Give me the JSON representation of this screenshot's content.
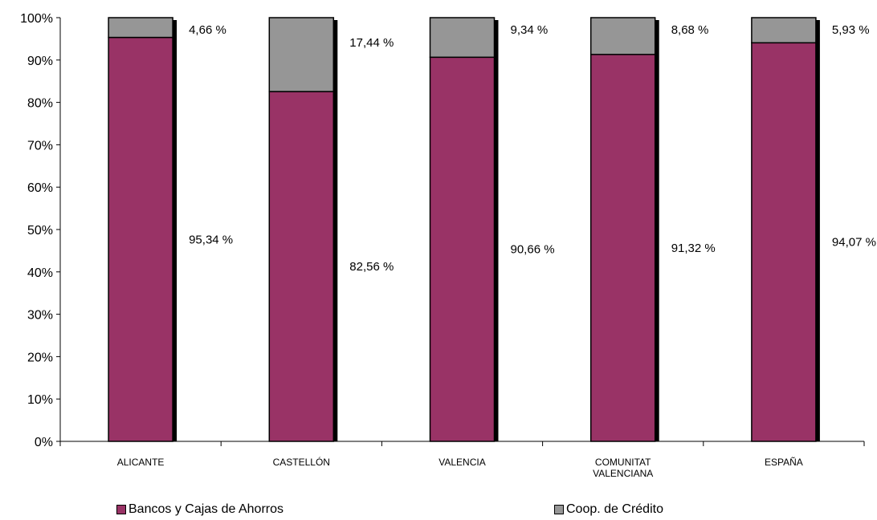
{
  "chart_data": {
    "type": "bar",
    "stacked": true,
    "percent": true,
    "categories": [
      "ALICANTE",
      "CASTELLÓN",
      "VALENCIA",
      "COMUNITAT VALENCIANA",
      "ESPAÑA"
    ],
    "category_lines": [
      [
        "ALICANTE"
      ],
      [
        "CASTELLÓN"
      ],
      [
        "VALENCIA"
      ],
      [
        "COMUNITAT",
        "VALENCIANA"
      ],
      [
        "ESPAÑA"
      ]
    ],
    "series": [
      {
        "name": "Bancos y Cajas de Ahorros",
        "color": "#993366",
        "values": [
          95.34,
          82.56,
          90.66,
          91.32,
          94.07
        ],
        "labels": [
          "95,34 %",
          "82,56 %",
          "90,66 %",
          "91,32 %",
          "94,07 %"
        ]
      },
      {
        "name": "Coop. de Crédito",
        "color": "#969696",
        "values": [
          4.66,
          17.44,
          9.34,
          8.68,
          5.93
        ],
        "labels": [
          "4,66 %",
          "17,44 %",
          "9,34 %",
          "8,68 %",
          "5,93 %"
        ]
      }
    ],
    "yticks": [
      "0%",
      "10%",
      "20%",
      "30%",
      "40%",
      "50%",
      "60%",
      "70%",
      "80%",
      "90%",
      "100%"
    ],
    "ylim": [
      0,
      100
    ],
    "grid": false,
    "legend_position": "bottom"
  }
}
